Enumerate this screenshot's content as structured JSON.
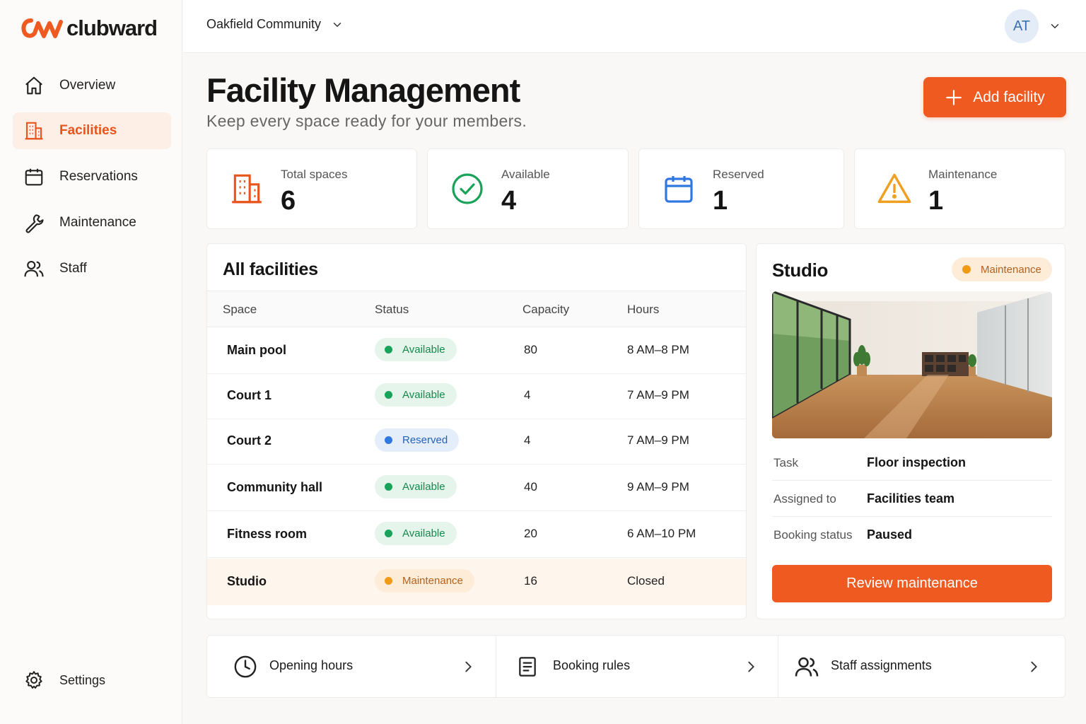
{
  "brand": {
    "name": "clubward",
    "accent": "#ee5a20"
  },
  "sidebar": {
    "items": [
      {
        "label": "Overview",
        "icon": "home-icon"
      },
      {
        "label": "Facilities",
        "icon": "building-icon",
        "active": true
      },
      {
        "label": "Reservations",
        "icon": "calendar-icon"
      },
      {
        "label": "Maintenance",
        "icon": "wrench-icon"
      },
      {
        "label": "Staff",
        "icon": "users-icon"
      }
    ],
    "settings_label": "Settings"
  },
  "topbar": {
    "community": "Oakfield Community",
    "avatar_initials": "AT"
  },
  "header": {
    "title": "Facility Management",
    "subtitle": "Keep every space ready for your members.",
    "add_button": "Add facility"
  },
  "stats": [
    {
      "label": "Total spaces",
      "value": "6",
      "icon": "building-icon",
      "color": "#e8541c"
    },
    {
      "label": "Available",
      "value": "4",
      "icon": "check-circle-icon",
      "color": "#19a35a"
    },
    {
      "label": "Reserved",
      "value": "1",
      "icon": "calendar-icon",
      "color": "#2f78e0"
    },
    {
      "label": "Maintenance",
      "value": "1",
      "icon": "warning-icon",
      "color": "#f0a020"
    }
  ],
  "table": {
    "title": "All facilities",
    "columns": [
      "Space",
      "Status",
      "Capacity",
      "Hours"
    ],
    "rows": [
      {
        "space": "Main pool",
        "status": "Available",
        "capacity": "80",
        "hours": "8 AM–8 PM"
      },
      {
        "space": "Court 1",
        "status": "Available",
        "capacity": "4",
        "hours": "7 AM–9 PM"
      },
      {
        "space": "Court 2",
        "status": "Reserved",
        "capacity": "4",
        "hours": "7 AM–9 PM"
      },
      {
        "space": "Community hall",
        "status": "Available",
        "capacity": "40",
        "hours": "9 AM–9 PM"
      },
      {
        "space": "Fitness room",
        "status": "Available",
        "capacity": "20",
        "hours": "6 AM–10 PM"
      },
      {
        "space": "Studio",
        "status": "Maintenance",
        "capacity": "16",
        "hours": "Closed"
      }
    ]
  },
  "detail": {
    "title": "Studio",
    "status": "Maintenance",
    "fields": [
      {
        "key": "Task",
        "value": "Floor inspection"
      },
      {
        "key": "Assigned to",
        "value": "Facilities team"
      },
      {
        "key": "Booking status",
        "value": "Paused"
      }
    ],
    "button": "Review maintenance"
  },
  "quick_links": [
    {
      "label": "Opening hours",
      "icon": "clock-icon"
    },
    {
      "label": "Booking rules",
      "icon": "document-icon"
    },
    {
      "label": "Staff assignments",
      "icon": "users-icon"
    }
  ]
}
